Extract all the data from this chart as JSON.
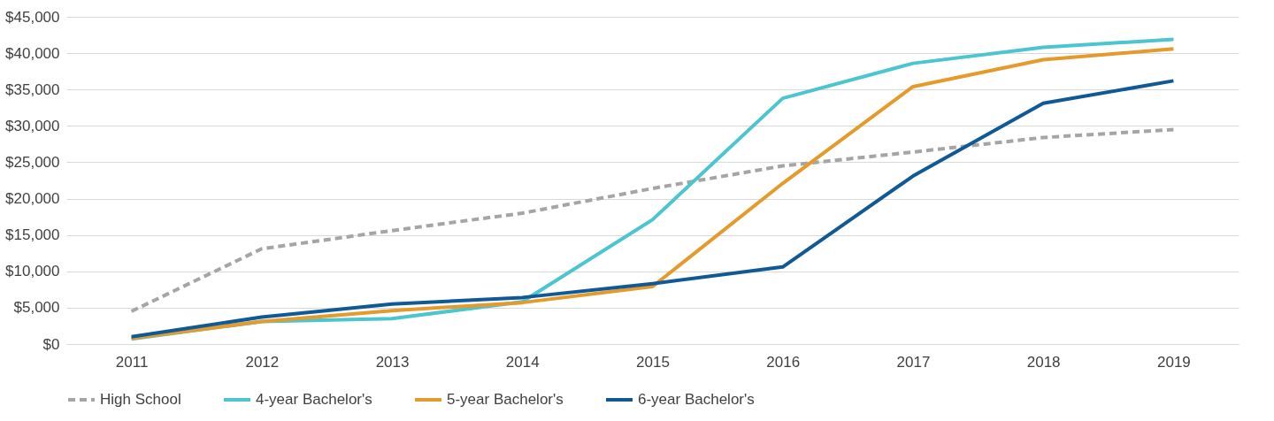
{
  "chart_data": {
    "type": "line",
    "categories": [
      "2011",
      "2012",
      "2013",
      "2014",
      "2015",
      "2016",
      "2017",
      "2018",
      "2019"
    ],
    "series": [
      {
        "name": "High School",
        "color": "#a5a5a5",
        "line_style": "dashed",
        "values": [
          4500,
          13100,
          15600,
          18000,
          21400,
          24500,
          26400,
          28400,
          29500
        ]
      },
      {
        "name": "4-year Bachelor's",
        "color": "#4bc5d0",
        "line_style": "solid",
        "values": [
          700,
          3100,
          3500,
          5800,
          17100,
          33800,
          38600,
          40800,
          41900
        ]
      },
      {
        "name": "5-year Bachelor's",
        "color": "#e49b2c",
        "line_style": "solid",
        "values": [
          800,
          3100,
          4600,
          5700,
          7900,
          22100,
          35400,
          39100,
          40600
        ]
      },
      {
        "name": "6-year Bachelor's",
        "color": "#0f5a96",
        "line_style": "solid",
        "values": [
          1000,
          3700,
          5500,
          6400,
          8300,
          10600,
          23100,
          33100,
          36200
        ]
      }
    ],
    "ylim": [
      0,
      45000
    ],
    "yticks": [
      {
        "value": 0,
        "label": "$0"
      },
      {
        "value": 5000,
        "label": "$5,000"
      },
      {
        "value": 10000,
        "label": "$10,000"
      },
      {
        "value": 15000,
        "label": "$15,000"
      },
      {
        "value": 20000,
        "label": "$20,000"
      },
      {
        "value": 25000,
        "label": "$25,000"
      },
      {
        "value": 30000,
        "label": "$30,000"
      },
      {
        "value": 35000,
        "label": "$35,000"
      },
      {
        "value": 40000,
        "label": "$40,000"
      },
      {
        "value": 45000,
        "label": "$45,000"
      }
    ],
    "grid": "y",
    "legend": "bottom",
    "marker": "none"
  }
}
